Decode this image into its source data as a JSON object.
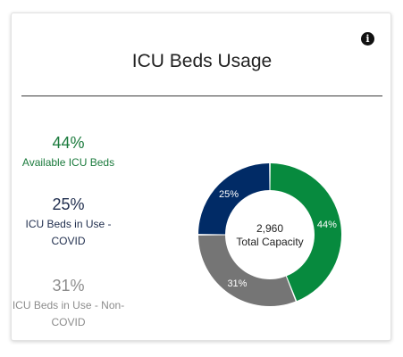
{
  "title": "ICU Beds Usage",
  "info_icon": "info-icon",
  "stats": [
    {
      "percent": "44%",
      "label": "Available ICU Beds",
      "color": "#1a7a3c"
    },
    {
      "percent": "25%",
      "label": "ICU Beds in Use - COVID",
      "color": "#1f2d4d"
    },
    {
      "percent": "31%",
      "label": "ICU Beds in Use - Non-COVID",
      "color": "#8c8c8c"
    }
  ],
  "chart_data": {
    "type": "pie",
    "variant": "donut",
    "center_value": "2,960",
    "center_label": "Total Capacity",
    "slices": [
      {
        "label": "Available ICU Beds",
        "value": 44,
        "display": "44%",
        "color": "#078a3e"
      },
      {
        "label": "ICU Beds in Use - Non-COVID",
        "value": 31,
        "display": "31%",
        "color": "#757575"
      },
      {
        "label": "ICU Beds in Use - COVID",
        "value": 25,
        "display": "25%",
        "color": "#012b66"
      }
    ]
  }
}
